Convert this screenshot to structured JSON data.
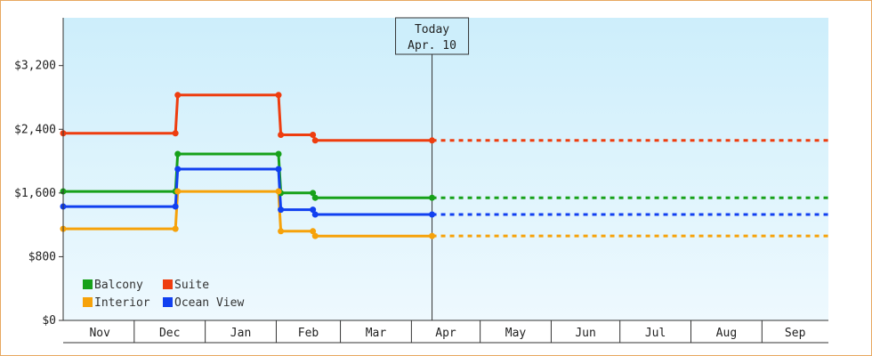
{
  "chart_data": {
    "type": "line",
    "style": "step",
    "title": "",
    "xlabel": "",
    "ylabel": "",
    "ylim": [
      0,
      3800
    ],
    "y_ticks": [
      {
        "value": 0,
        "label": "$0"
      },
      {
        "value": 800,
        "label": "$800"
      },
      {
        "value": 1600,
        "label": "$1,600"
      },
      {
        "value": 2400,
        "label": "$2,400"
      },
      {
        "value": 3200,
        "label": "$3,200"
      }
    ],
    "x_range": [
      "2016-10-31",
      "2017-09-30"
    ],
    "x_months": [
      {
        "label": "Nov",
        "start": "2016-11-01",
        "end": "2016-11-30"
      },
      {
        "label": "Dec",
        "start": "2016-12-01",
        "end": "2016-12-31"
      },
      {
        "label": "Jan",
        "start": "2017-01-01",
        "end": "2017-01-31"
      },
      {
        "label": "Feb",
        "start": "2017-02-01",
        "end": "2017-02-28"
      },
      {
        "label": "Mar",
        "start": "2017-03-01",
        "end": "2017-03-31"
      },
      {
        "label": "Apr",
        "start": "2017-04-01",
        "end": "2017-04-30"
      },
      {
        "label": "May",
        "start": "2017-05-01",
        "end": "2017-05-31"
      },
      {
        "label": "Jun",
        "start": "2017-06-01",
        "end": "2017-06-30"
      },
      {
        "label": "Jul",
        "start": "2017-07-01",
        "end": "2017-07-31"
      },
      {
        "label": "Aug",
        "start": "2017-08-01",
        "end": "2017-08-31"
      },
      {
        "label": "Sep",
        "start": "2017-09-01",
        "end": "2017-09-30"
      }
    ],
    "today": {
      "title": "Today",
      "label": "Apr. 10",
      "date": "2017-04-10"
    },
    "projection_end": "2017-09-30",
    "grid": false,
    "legend_position": "bottom-left",
    "background": {
      "top": "#cdeefb",
      "bottom": "#eef9fe"
    },
    "series": [
      {
        "name": "Balcony",
        "color": "#17a11a",
        "points": [
          {
            "date": "2016-10-31",
            "price": 1620
          },
          {
            "date": "2016-12-19",
            "price": 1620
          },
          {
            "date": "2016-12-20",
            "price": 2090
          },
          {
            "date": "2017-02-02",
            "price": 2090
          },
          {
            "date": "2017-02-03",
            "price": 1600
          },
          {
            "date": "2017-02-17",
            "price": 1600
          },
          {
            "date": "2017-02-18",
            "price": 1540
          },
          {
            "date": "2017-04-10",
            "price": 1540
          }
        ]
      },
      {
        "name": "Suite",
        "color": "#ee3d0f",
        "points": [
          {
            "date": "2016-10-31",
            "price": 2350
          },
          {
            "date": "2016-12-19",
            "price": 2350
          },
          {
            "date": "2016-12-20",
            "price": 2830
          },
          {
            "date": "2017-02-02",
            "price": 2830
          },
          {
            "date": "2017-02-03",
            "price": 2330
          },
          {
            "date": "2017-02-17",
            "price": 2330
          },
          {
            "date": "2017-02-18",
            "price": 2260
          },
          {
            "date": "2017-04-10",
            "price": 2260
          }
        ]
      },
      {
        "name": "Interior",
        "color": "#f6a20a",
        "points": [
          {
            "date": "2016-10-31",
            "price": 1150
          },
          {
            "date": "2016-12-19",
            "price": 1150
          },
          {
            "date": "2016-12-20",
            "price": 1620
          },
          {
            "date": "2017-02-02",
            "price": 1620
          },
          {
            "date": "2017-02-03",
            "price": 1120
          },
          {
            "date": "2017-02-17",
            "price": 1120
          },
          {
            "date": "2017-02-18",
            "price": 1060
          },
          {
            "date": "2017-04-10",
            "price": 1060
          }
        ]
      },
      {
        "name": "Ocean View",
        "color": "#1140f0",
        "points": [
          {
            "date": "2016-10-31",
            "price": 1430
          },
          {
            "date": "2016-12-19",
            "price": 1430
          },
          {
            "date": "2016-12-20",
            "price": 1900
          },
          {
            "date": "2017-02-02",
            "price": 1900
          },
          {
            "date": "2017-02-03",
            "price": 1390
          },
          {
            "date": "2017-02-17",
            "price": 1390
          },
          {
            "date": "2017-02-18",
            "price": 1330
          },
          {
            "date": "2017-04-10",
            "price": 1330
          }
        ]
      }
    ],
    "legend_order": [
      "Balcony",
      "Suite",
      "Interior",
      "Ocean View"
    ]
  }
}
